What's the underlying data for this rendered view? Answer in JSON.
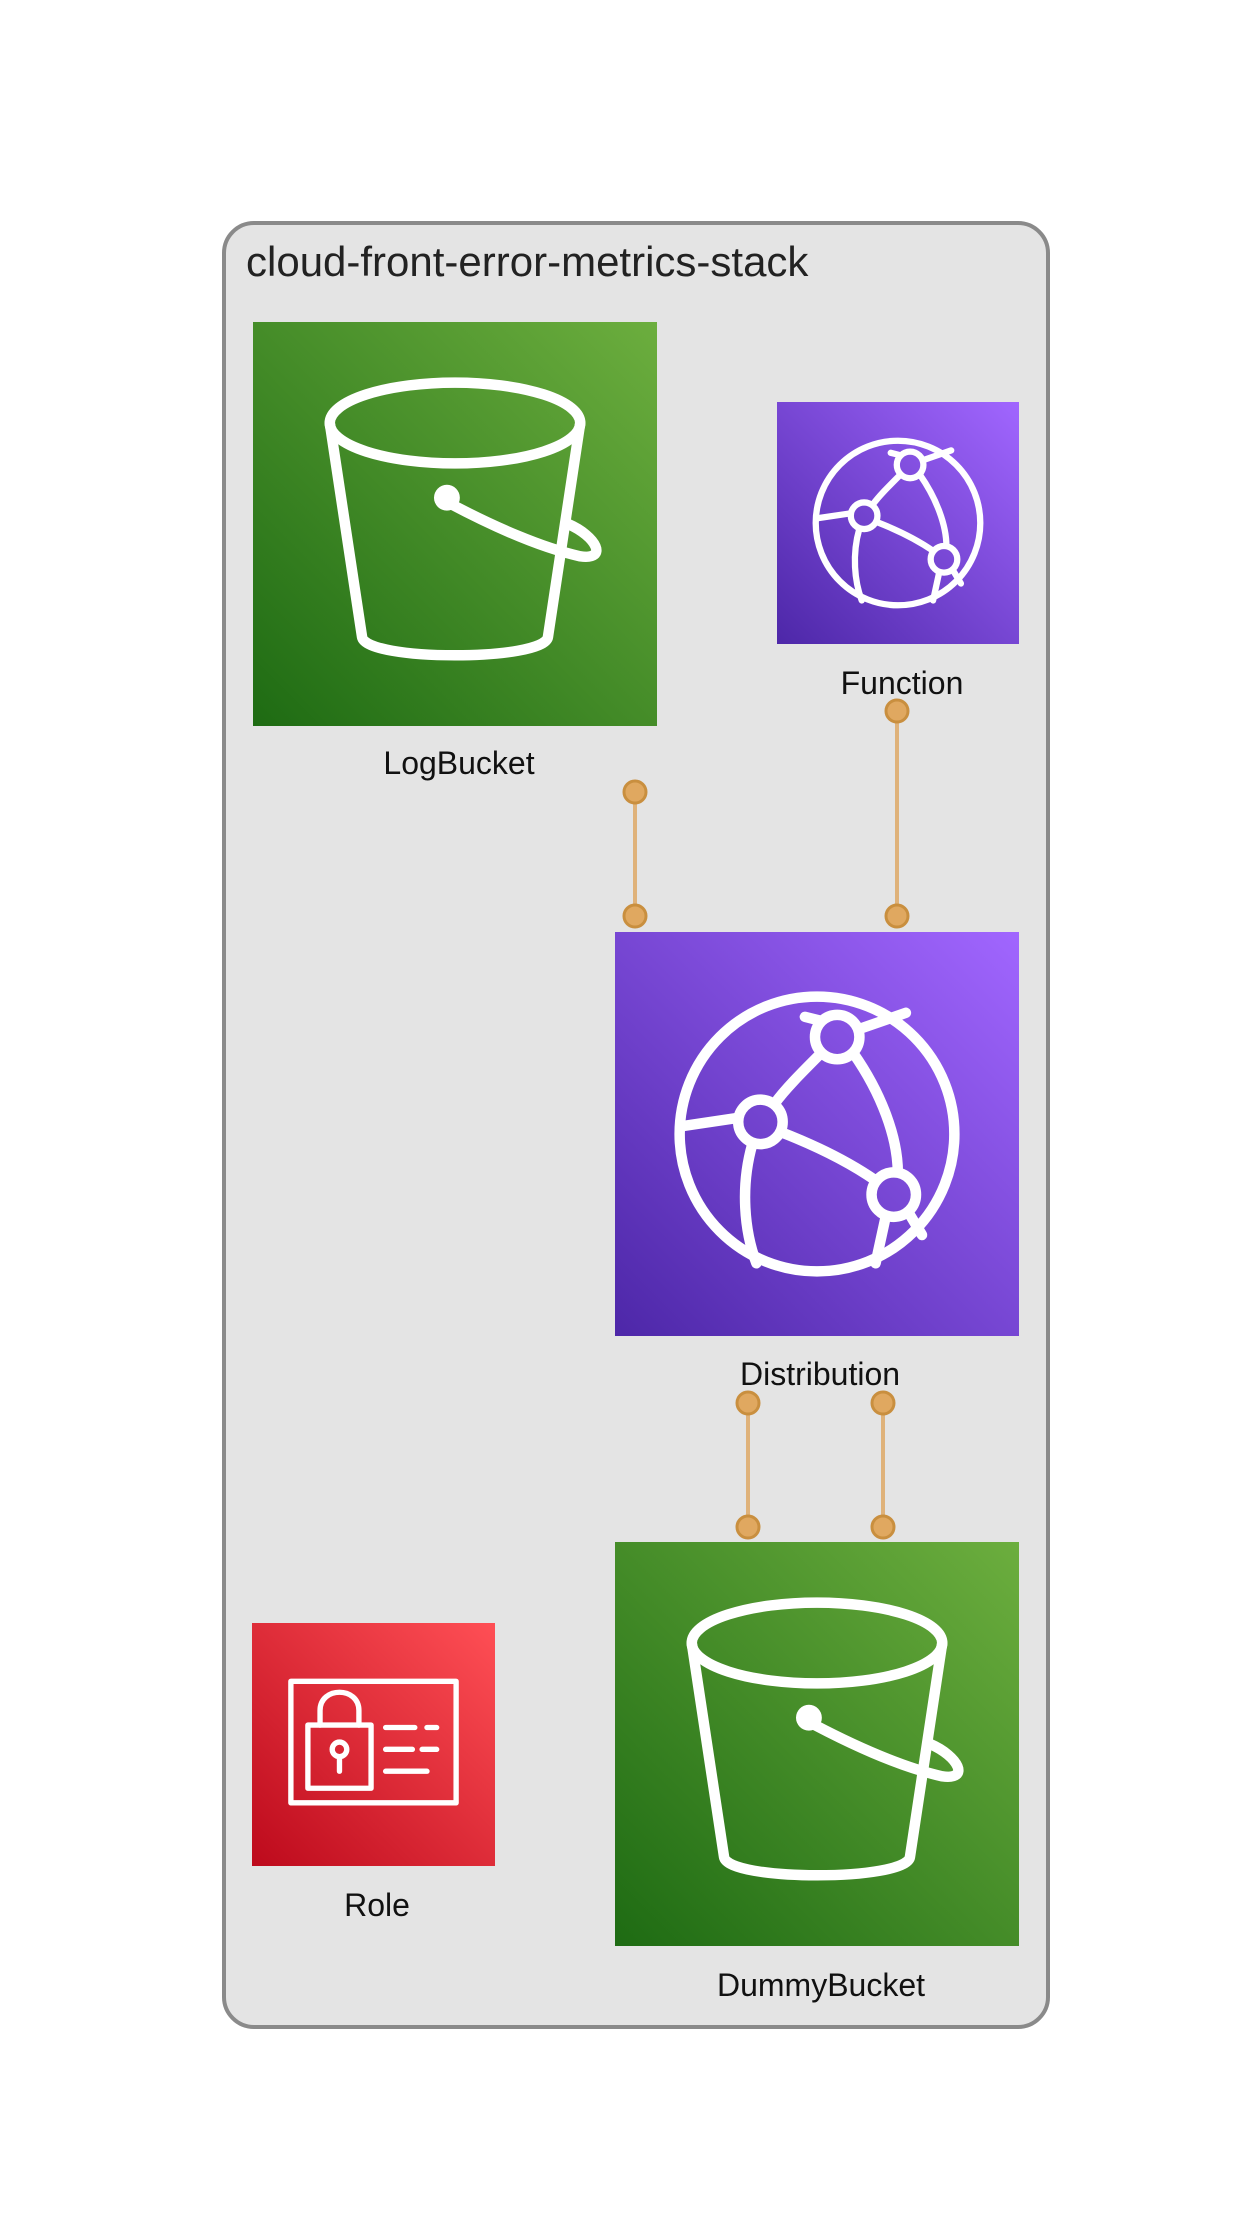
{
  "stack": {
    "title": "cloud-front-error-metrics-stack"
  },
  "nodes": {
    "log_bucket": {
      "label": "LogBucket",
      "icon": "s3-bucket-icon"
    },
    "function": {
      "label": "Function",
      "icon": "cloudfront-function-icon"
    },
    "distribution": {
      "label": "Distribution",
      "icon": "cloudfront-distribution-icon"
    },
    "role": {
      "label": "Role",
      "icon": "iam-role-icon"
    },
    "dummy_bucket": {
      "label": "DummyBucket",
      "icon": "s3-bucket-icon"
    }
  },
  "edges": [
    {
      "from": "log_bucket",
      "to": "distribution"
    },
    {
      "from": "function",
      "to": "distribution"
    },
    {
      "from": "distribution",
      "to": "dummy_bucket"
    },
    {
      "from": "distribution",
      "to": "dummy_bucket"
    }
  ],
  "colors": {
    "s3_light": "#6cae3e",
    "s3_dark": "#1e6b13",
    "cloudfront_light": "#a166ff",
    "cloudfront_dark": "#4d27a8",
    "iam_light": "#ff4f55",
    "iam_dark": "#bd0a1c",
    "edge": "#dfb27a",
    "container_fill": "#e4e4e4",
    "container_stroke": "#8a8a8a"
  }
}
